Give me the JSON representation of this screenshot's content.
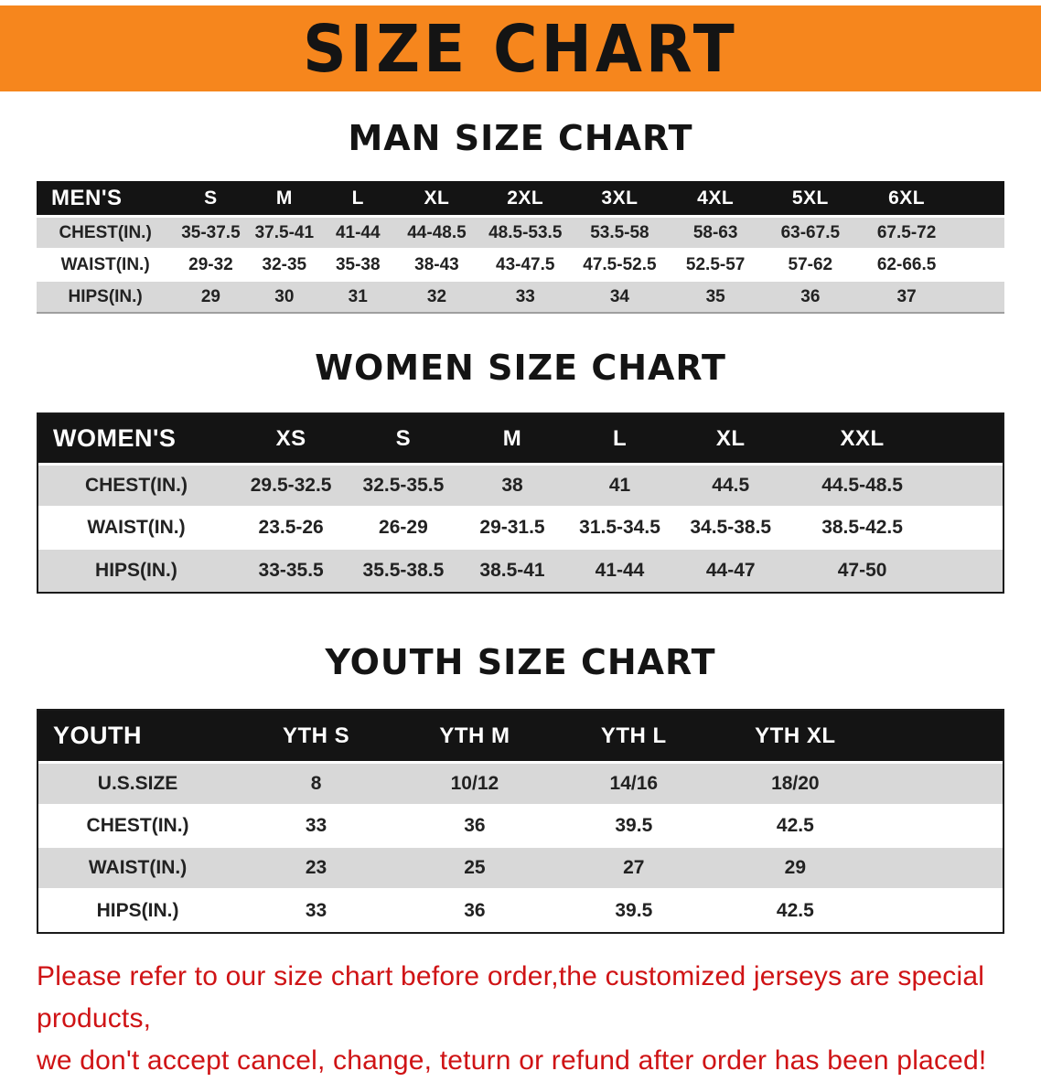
{
  "banner": {
    "title": "SIZE CHART"
  },
  "colors": {
    "banner_bg": "#f6861d",
    "table_header_bg": "#141414",
    "row_alt": "#d8d8d8",
    "disclaimer_red": "#cf1315"
  },
  "chart_data": [
    {
      "type": "table",
      "title": "MAN SIZE CHART",
      "columns": [
        "MEN'S",
        "S",
        "M",
        "L",
        "XL",
        "2XL",
        "3XL",
        "4XL",
        "5XL",
        "6XL"
      ],
      "rows": [
        [
          "CHEST(IN.)",
          "35-37.5",
          "37.5-41",
          "41-44",
          "44-48.5",
          "48.5-53.5",
          "53.5-58",
          "58-63",
          "63-67.5",
          "67.5-72"
        ],
        [
          "WAIST(IN.)",
          "29-32",
          "32-35",
          "35-38",
          "38-43",
          "43-47.5",
          "47.5-52.5",
          "52.5-57",
          "57-62",
          "62-66.5"
        ],
        [
          "HIPS(IN.)",
          "29",
          "30",
          "31",
          "32",
          "33",
          "34",
          "35",
          "36",
          "37"
        ]
      ]
    },
    {
      "type": "table",
      "title": "WOMEN SIZE CHART",
      "columns": [
        "WOMEN'S",
        "XS",
        "S",
        "M",
        "L",
        "XL",
        "XXL"
      ],
      "rows": [
        [
          "CHEST(IN.)",
          "29.5-32.5",
          "32.5-35.5",
          "38",
          "41",
          "44.5",
          "44.5-48.5"
        ],
        [
          "WAIST(IN.)",
          "23.5-26",
          "26-29",
          "29-31.5",
          "31.5-34.5",
          "34.5-38.5",
          "38.5-42.5"
        ],
        [
          "HIPS(IN.)",
          "33-35.5",
          "35.5-38.5",
          "38.5-41",
          "41-44",
          "44-47",
          "47-50"
        ]
      ]
    },
    {
      "type": "table",
      "title": "YOUTH SIZE CHART",
      "columns": [
        "YOUTH",
        "YTH S",
        "YTH M",
        "YTH L",
        "YTH XL"
      ],
      "rows": [
        [
          "U.S.SIZE",
          "8",
          "10/12",
          "14/16",
          "18/20"
        ],
        [
          "CHEST(IN.)",
          "33",
          "36",
          "39.5",
          "42.5"
        ],
        [
          "WAIST(IN.)",
          "23",
          "25",
          "27",
          "29"
        ],
        [
          "HIPS(IN.)",
          "33",
          "36",
          "39.5",
          "42.5"
        ]
      ]
    }
  ],
  "disclaimer": {
    "line1": "Please refer to our size chart before order,the customized jerseys are special products,",
    "line2": "we don't accept cancel, change, teturn or refund after order has been placed!"
  }
}
